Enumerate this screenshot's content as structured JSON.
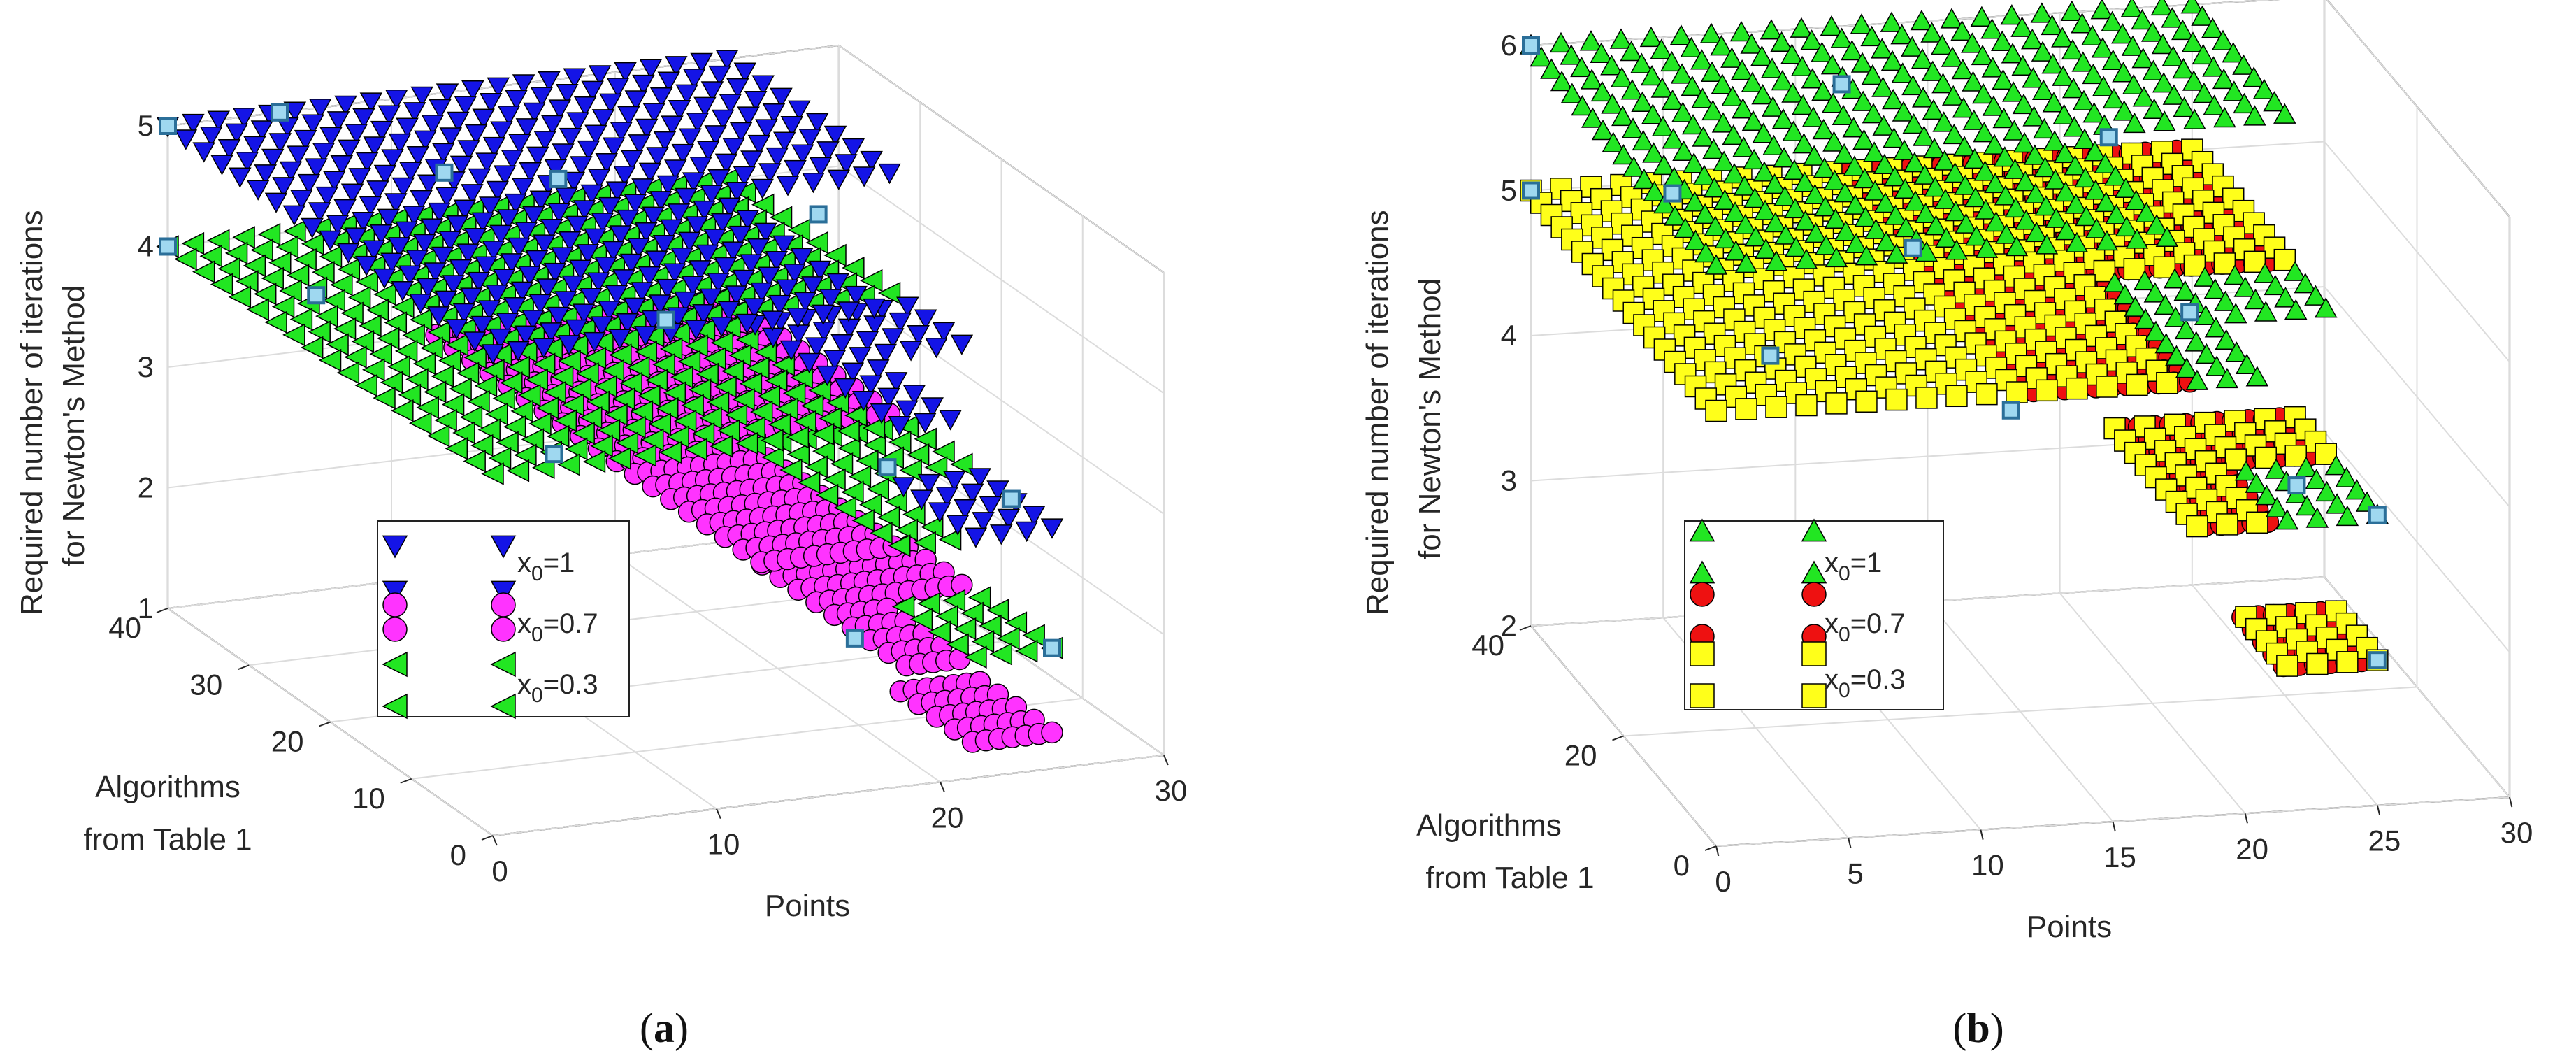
{
  "figure": {
    "panels": [
      {
        "id": "a",
        "caption_letter": "a",
        "chart_data": {
          "type": "scatter",
          "projection": "3d",
          "title": "",
          "xlabel": "Points",
          "ylabel": "Algorithms from Table 1",
          "ylabel_lines": [
            "Algorithms",
            "from Table 1"
          ],
          "zlabel": "Required number of iterations for Newton's Method",
          "zlabel_lines": [
            "Required number of iterations",
            "for Newton's Method"
          ],
          "xlim": [
            0,
            30
          ],
          "ylim": [
            0,
            40
          ],
          "zlim": [
            1,
            5
          ],
          "xticks": [
            0,
            10,
            20,
            30
          ],
          "yticks": [
            0,
            10,
            20,
            30,
            40
          ],
          "zticks": [
            1,
            2,
            3,
            4,
            5
          ],
          "grid": true,
          "legend_position": "lower-left",
          "series": [
            {
              "name": "x0=1",
              "label_main": "x",
              "label_sub": "0",
              "label_tail": "=1",
              "marker": "triangle-down",
              "color": "#1414e6",
              "plane_z": 5,
              "x_extent": [
                0,
                25
              ],
              "y_extent": [
                0,
                40
              ]
            },
            {
              "name": "x0=0.7",
              "label_main": "x",
              "label_sub": "0",
              "label_tail": "=0.7",
              "marker": "circle",
              "color": "#ff33ff",
              "plane_z": 3,
              "x_extent": [
                12,
                25
              ],
              "y_extent": [
                0,
                40
              ]
            },
            {
              "name": "x0=0.3",
              "label_main": "x",
              "label_sub": "0",
              "label_tail": "=0.3",
              "marker": "triangle-left",
              "color": "#22e622",
              "plane_z": 4,
              "x_extent": [
                0,
                25
              ],
              "y_extent": [
                0,
                40
              ]
            }
          ],
          "highlighted_points": [
            {
              "x": 0,
              "y": 40,
              "z": 5
            },
            {
              "x": 0,
              "y": 40,
              "z": 4
            },
            {
              "x": 5,
              "y": 40,
              "z": 5
            },
            {
              "x": 3,
              "y": 30,
              "z": 4
            },
            {
              "x": 8,
              "y": 28,
              "z": 5
            },
            {
              "x": 12,
              "y": 25,
              "z": 5
            },
            {
              "x": 15,
              "y": 20,
              "z": 4
            },
            {
              "x": 20,
              "y": 15,
              "z": 5
            },
            {
              "x": 25,
              "y": 5,
              "z": 3
            },
            {
              "x": 25,
              "y": 0,
              "z": 2
            },
            {
              "x": 18,
              "y": 5,
              "z": 2
            },
            {
              "x": 10,
              "y": 20,
              "z": 3
            },
            {
              "x": 22,
              "y": 12,
              "z": 3
            }
          ]
        }
      },
      {
        "id": "b",
        "caption_letter": "b",
        "chart_data": {
          "type": "scatter",
          "projection": "3d",
          "title": "",
          "xlabel": "Points",
          "ylabel": "Algorithms from Table 1",
          "ylabel_lines": [
            "Algorithms",
            "from Table 1"
          ],
          "zlabel": "Required number of iterations for Newton's Method",
          "zlabel_lines": [
            "Required number of iterations",
            "for Newton's Method"
          ],
          "xlim": [
            0,
            30
          ],
          "ylim": [
            0,
            40
          ],
          "zlim": [
            2,
            6
          ],
          "xticks": [
            0,
            5,
            10,
            15,
            20,
            25,
            30
          ],
          "yticks": [
            0,
            20,
            40
          ],
          "zticks": [
            2,
            3,
            4,
            5,
            6
          ],
          "grid": true,
          "legend_position": "lower-left",
          "series": [
            {
              "name": "x0=1",
              "label_main": "x",
              "label_sub": "0",
              "label_tail": "=1",
              "marker": "triangle-up",
              "color": "#22e622",
              "plane_z": 6,
              "x_extent": [
                0,
                25
              ],
              "y_extent": [
                0,
                40
              ]
            },
            {
              "name": "x0=0.7",
              "label_main": "x",
              "label_sub": "0",
              "label_tail": "=0.7",
              "marker": "circle",
              "color": "#ee1111",
              "plane_z": 5,
              "x_extent": [
                12,
                25
              ],
              "y_extent": [
                0,
                40
              ]
            },
            {
              "name": "x0=0.3",
              "label_main": "x",
              "label_sub": "0",
              "label_tail": "=0.3",
              "marker": "square",
              "color": "#ffff1a",
              "plane_z": 5,
              "x_extent": [
                0,
                25
              ],
              "y_extent": [
                0,
                40
              ]
            }
          ],
          "highlighted_points": [
            {
              "x": 0,
              "y": 40,
              "z": 6
            },
            {
              "x": 0,
              "y": 40,
              "z": 5
            },
            {
              "x": 5,
              "y": 38,
              "z": 5
            },
            {
              "x": 10,
              "y": 30,
              "z": 6
            },
            {
              "x": 12,
              "y": 26,
              "z": 5
            },
            {
              "x": 18,
              "y": 18,
              "z": 6
            },
            {
              "x": 20,
              "y": 12,
              "z": 5
            },
            {
              "x": 25,
              "y": 0,
              "z": 4
            },
            {
              "x": 25,
              "y": 0,
              "z": 3
            },
            {
              "x": 23,
              "y": 6,
              "z": 4
            },
            {
              "x": 8,
              "y": 34,
              "z": 4
            },
            {
              "x": 15,
              "y": 22,
              "z": 4
            }
          ]
        }
      }
    ]
  }
}
